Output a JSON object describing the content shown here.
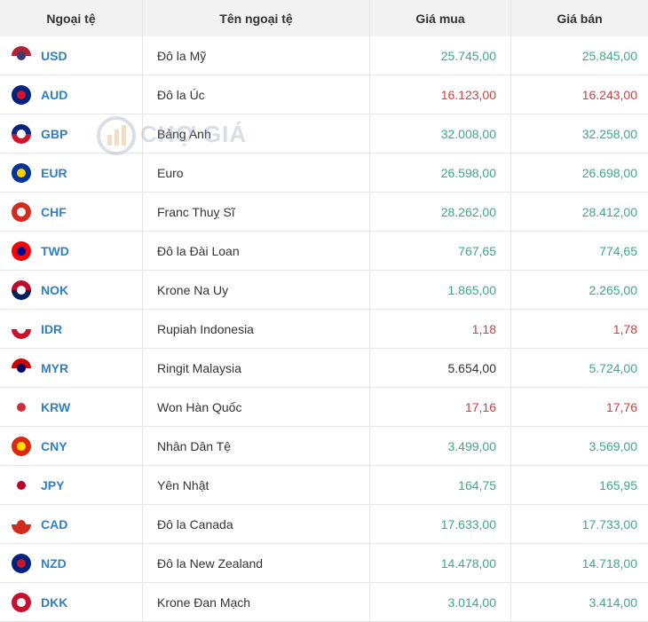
{
  "watermark": "CHỢ GIÁ",
  "table": {
    "headers": [
      "Ngoại tệ",
      "Tên ngoại tệ",
      "Giá mua",
      "Giá bán"
    ],
    "rows": [
      [
        "USD",
        "Đô la Mỹ",
        "25.745,00",
        "25.845,00"
      ],
      [
        "AUD",
        "Đô la Úc",
        "16.123,00",
        "16.243,00"
      ],
      [
        "GBP",
        "Bảng Anh",
        "32.008,00",
        "32.258,00"
      ],
      [
        "EUR",
        "Euro",
        "26.598,00",
        "26.698,00"
      ],
      [
        "CHF",
        "Franc Thuỵ Sĩ",
        "28.262,00",
        "28.412,00"
      ],
      [
        "TWD",
        "Đô la Đài Loan",
        "767,65",
        "774,65"
      ],
      [
        "NOK",
        "Krone Na Uy",
        "1.865,00",
        "2.265,00"
      ],
      [
        "IDR",
        "Rupiah Indonesia",
        "1,18",
        "1,78"
      ],
      [
        "MYR",
        "Ringit Malaysia",
        "5.654,00",
        "5.724,00"
      ],
      [
        "KRW",
        "Won Hàn Quốc",
        "17,16",
        "17,76"
      ],
      [
        "CNY",
        "Nhân Dân Tệ",
        "3.499,00",
        "3.569,00"
      ],
      [
        "JPY",
        "Yên Nhật",
        "164,75",
        "165,95"
      ],
      [
        "CAD",
        "Đô la Canada",
        "17.633,00",
        "17.733,00"
      ],
      [
        "NZD",
        "Đô la New Zealand",
        "14.478,00",
        "14.718,00"
      ],
      [
        "DKK",
        "Krone Đan Mạch",
        "3.014,00",
        "3.414,00"
      ]
    ],
    "price_colors": [
      [
        "#3aa88a",
        "#3aa88a"
      ],
      [
        "#d83a3f",
        "#d83a3f"
      ],
      [
        "#3aa88a",
        "#3aa88a"
      ],
      [
        "#3aa88a",
        "#3aa88a"
      ],
      [
        "#3aa88a",
        "#3aa88a"
      ],
      [
        "#3aa88a",
        "#3aa88a"
      ],
      [
        "#3aa88a",
        "#3aa88a"
      ],
      [
        "#d83a3f",
        "#d83a3f"
      ],
      [
        "#333333",
        "#3aa88a"
      ],
      [
        "#d83a3f",
        "#d83a3f"
      ],
      [
        "#3aa88a",
        "#3aa88a"
      ],
      [
        "#3aa88a",
        "#3aa88a"
      ],
      [
        "#3aa88a",
        "#3aa88a"
      ],
      [
        "#3aa88a",
        "#3aa88a"
      ],
      [
        "#3aa88a",
        "#3aa88a"
      ]
    ]
  }
}
